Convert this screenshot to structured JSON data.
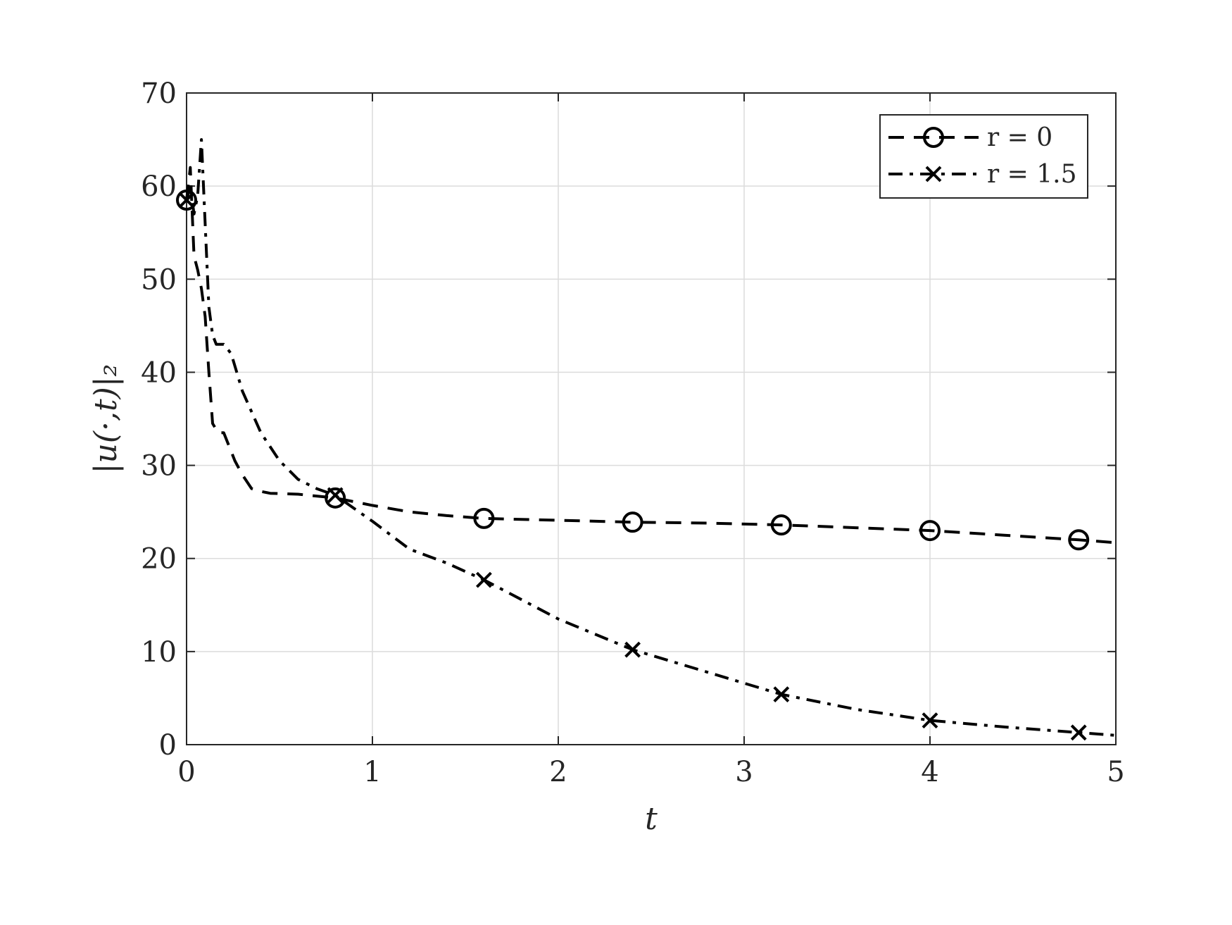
{
  "chart_data": {
    "type": "line",
    "title": "",
    "xlabel": "t",
    "ylabel": "|u(·,t)|₂",
    "xlim": [
      0,
      5
    ],
    "ylim": [
      0,
      70
    ],
    "xticks": [
      "0",
      "1",
      "2",
      "3",
      "4",
      "5"
    ],
    "yticks": [
      "0",
      "10",
      "20",
      "30",
      "40",
      "50",
      "60",
      "70"
    ],
    "grid": true,
    "legend_position": "top-right",
    "series": [
      {
        "name": "r = 0",
        "line_style": "dashed",
        "marker": "circle",
        "color": "#000000",
        "x": [
          0,
          0.02,
          0.04,
          0.06,
          0.08,
          0.1,
          0.12,
          0.14,
          0.17,
          0.2,
          0.23,
          0.26,
          0.3,
          0.35,
          0.4,
          0.45,
          0.6,
          0.8,
          1.0,
          1.2,
          1.4,
          1.6,
          2.0,
          2.4,
          2.8,
          3.2,
          3.6,
          4.0,
          4.4,
          4.8,
          5.0
        ],
        "y": [
          58.5,
          62.0,
          52.5,
          51.0,
          49.0,
          46.0,
          40.0,
          34.5,
          33.5,
          33.5,
          32.0,
          30.5,
          29.0,
          27.5,
          27.2,
          27.0,
          26.9,
          26.5,
          25.7,
          25.0,
          24.6,
          24.3,
          24.1,
          23.9,
          23.8,
          23.6,
          23.3,
          23.0,
          22.5,
          22.0,
          21.7
        ],
        "marker_x": [
          0,
          0.8,
          1.6,
          2.4,
          3.2,
          4.0,
          4.8
        ],
        "marker_y": [
          58.5,
          26.5,
          24.3,
          23.9,
          23.6,
          23.0,
          22.0
        ]
      },
      {
        "name": "r = 1.5",
        "line_style": "dashdot",
        "marker": "x",
        "color": "#000000",
        "x": [
          0,
          0.02,
          0.04,
          0.06,
          0.08,
          0.1,
          0.12,
          0.14,
          0.16,
          0.2,
          0.24,
          0.3,
          0.4,
          0.5,
          0.6,
          0.7,
          0.8,
          1.0,
          1.2,
          1.4,
          1.6,
          2.0,
          2.4,
          2.8,
          3.2,
          3.6,
          4.0,
          4.4,
          4.8,
          5.0
        ],
        "y": [
          58.5,
          60.0,
          57.0,
          59.0,
          65.0,
          56.0,
          47.0,
          44.0,
          43.0,
          43.0,
          42.0,
          38.0,
          33.5,
          30.5,
          28.5,
          27.5,
          26.8,
          24.0,
          21.0,
          19.5,
          17.7,
          13.5,
          10.2,
          7.8,
          5.4,
          3.8,
          2.6,
          1.9,
          1.3,
          1.0
        ],
        "marker_x": [
          0,
          0.8,
          1.6,
          2.4,
          3.2,
          4.0,
          4.8
        ],
        "marker_y": [
          58.5,
          26.8,
          17.7,
          10.2,
          5.4,
          2.6,
          1.3
        ]
      }
    ]
  }
}
